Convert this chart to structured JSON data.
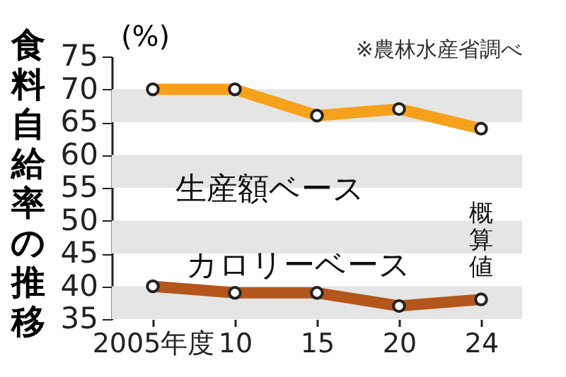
{
  "chart_data": {
    "type": "line",
    "title": "食料自給率の推移",
    "ylabel": "(%)",
    "annotations": [
      "※農林水産省調べ",
      {
        "text": "概算値",
        "x": "24",
        "y": 51
      }
    ],
    "categories": [
      "2005年度",
      "10",
      "15",
      "20",
      "24"
    ],
    "series": [
      {
        "name": "生産額ベース",
        "color": "#f5a11c",
        "values": [
          70,
          70,
          66,
          67,
          64
        ]
      },
      {
        "name": "カロリーベース",
        "color": "#b4561c",
        "values": [
          40,
          39,
          39,
          37,
          38
        ]
      }
    ],
    "ylim": [
      35,
      75
    ],
    "yticks": [
      35,
      40,
      45,
      50,
      55,
      60,
      65,
      70,
      75
    ],
    "bands": [
      {
        "axis": "y",
        "from": 35,
        "to": 40,
        "color": "#e5e5e5"
      },
      {
        "axis": "y",
        "from": 45,
        "to": 50,
        "color": "#e5e5e5"
      },
      {
        "axis": "y",
        "from": 55,
        "to": 60,
        "color": "#e5e5e5"
      },
      {
        "axis": "y",
        "from": 65,
        "to": 70,
        "color": "#e5e5e5"
      }
    ],
    "grid": false,
    "legend": false,
    "marker": "circle",
    "line_style": "solid"
  }
}
